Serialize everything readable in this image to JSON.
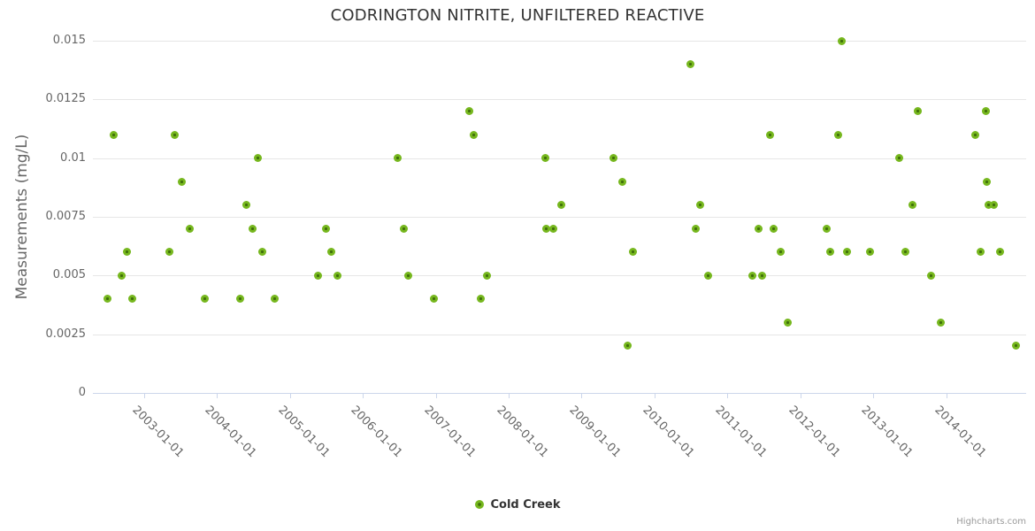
{
  "chart": {
    "credit": "Highcharts.com",
    "colors": {
      "title": "#333333",
      "axis_label": "#666666",
      "grid": "#e6e6e6",
      "axis_line": "#ccd6eb",
      "marker_outer": "#76b71e",
      "marker_inner": "#3f6e0a",
      "legend_text": "#333333",
      "credit_text": "#999999",
      "background": "#ffffff"
    }
  },
  "chart_data": {
    "type": "scatter",
    "title": "CODRINGTON NITRITE, UNFILTERED REACTIVE",
    "xlabel": "",
    "ylabel": "Measurements (mg/L)",
    "ylim": [
      0,
      0.015
    ],
    "xlim_years": [
      2002.3,
      2015.1
    ],
    "grid": "horizontal",
    "legend_position": "bottom-center",
    "yticks": [
      0,
      0.0025,
      0.005,
      0.0075,
      0.01,
      0.0125,
      0.015
    ],
    "ytick_labels": [
      "0",
      "0.0025",
      "0.005",
      "0.0075",
      "0.01",
      "0.0125",
      "0.015"
    ],
    "xtick_labels": [
      "2003-01-01",
      "2004-01-01",
      "2005-01-01",
      "2006-01-01",
      "2007-01-01",
      "2008-01-01",
      "2009-01-01",
      "2010-01-01",
      "2011-01-01",
      "2012-01-01",
      "2013-01-01",
      "2014-01-01"
    ],
    "series": [
      {
        "name": "Cold Creek",
        "color": "#76b71e",
        "points": [
          [
            "2002-07-02",
            0.004
          ],
          [
            "2002-08-03",
            0.011
          ],
          [
            "2002-09-13",
            0.005
          ],
          [
            "2002-10-08",
            0.006
          ],
          [
            "2002-11-03",
            0.004
          ],
          [
            "2003-05-08",
            0.006
          ],
          [
            "2003-06-02",
            0.011
          ],
          [
            "2003-07-09",
            0.009
          ],
          [
            "2003-08-18",
            0.007
          ],
          [
            "2003-11-03",
            0.004
          ],
          [
            "2004-04-27",
            0.004
          ],
          [
            "2004-05-30",
            0.008
          ],
          [
            "2004-06-28",
            0.007
          ],
          [
            "2004-07-23",
            0.01
          ],
          [
            "2004-08-18",
            0.006
          ],
          [
            "2004-10-19",
            0.004
          ],
          [
            "2005-05-22",
            0.005
          ],
          [
            "2005-07-02",
            0.007
          ],
          [
            "2005-07-27",
            0.006
          ],
          [
            "2005-08-29",
            0.005
          ],
          [
            "2006-06-24",
            0.01
          ],
          [
            "2006-07-27",
            0.007
          ],
          [
            "2006-08-18",
            0.005
          ],
          [
            "2006-12-24",
            0.004
          ],
          [
            "2007-06-17",
            0.012
          ],
          [
            "2007-07-09",
            0.011
          ],
          [
            "2007-08-14",
            0.004
          ],
          [
            "2007-09-16",
            0.005
          ],
          [
            "2008-07-05",
            0.01
          ],
          [
            "2008-07-09",
            0.007
          ],
          [
            "2008-08-14",
            0.007
          ],
          [
            "2008-09-23",
            0.008
          ],
          [
            "2009-06-10",
            0.01
          ],
          [
            "2009-07-23",
            0.009
          ],
          [
            "2009-08-18",
            0.002
          ],
          [
            "2009-09-13",
            0.006
          ],
          [
            "2010-07-02",
            0.014
          ],
          [
            "2010-07-27",
            0.007
          ],
          [
            "2010-08-18",
            0.008
          ],
          [
            "2010-09-27",
            0.005
          ],
          [
            "2011-05-04",
            0.005
          ],
          [
            "2011-06-06",
            0.007
          ],
          [
            "2011-06-24",
            0.005
          ],
          [
            "2011-08-03",
            0.011
          ],
          [
            "2011-08-22",
            0.007
          ],
          [
            "2011-09-23",
            0.006
          ],
          [
            "2011-10-30",
            0.003
          ],
          [
            "2012-05-11",
            0.007
          ],
          [
            "2012-05-29",
            0.006
          ],
          [
            "2012-07-09",
            0.011
          ],
          [
            "2012-07-27",
            0.015
          ],
          [
            "2012-08-21",
            0.006
          ],
          [
            "2012-12-16",
            0.006
          ],
          [
            "2013-05-11",
            0.01
          ],
          [
            "2013-06-10",
            0.006
          ],
          [
            "2013-07-16",
            0.008
          ],
          [
            "2013-08-11",
            0.012
          ],
          [
            "2013-10-15",
            0.005
          ],
          [
            "2013-12-05",
            0.003
          ],
          [
            "2014-05-26",
            0.011
          ],
          [
            "2014-06-21",
            0.006
          ],
          [
            "2014-07-18",
            0.012
          ],
          [
            "2014-07-22",
            0.009
          ],
          [
            "2014-08-03",
            0.008
          ],
          [
            "2014-08-29",
            0.008
          ],
          [
            "2014-09-27",
            0.006
          ],
          [
            "2014-12-16",
            0.002
          ]
        ]
      }
    ]
  }
}
